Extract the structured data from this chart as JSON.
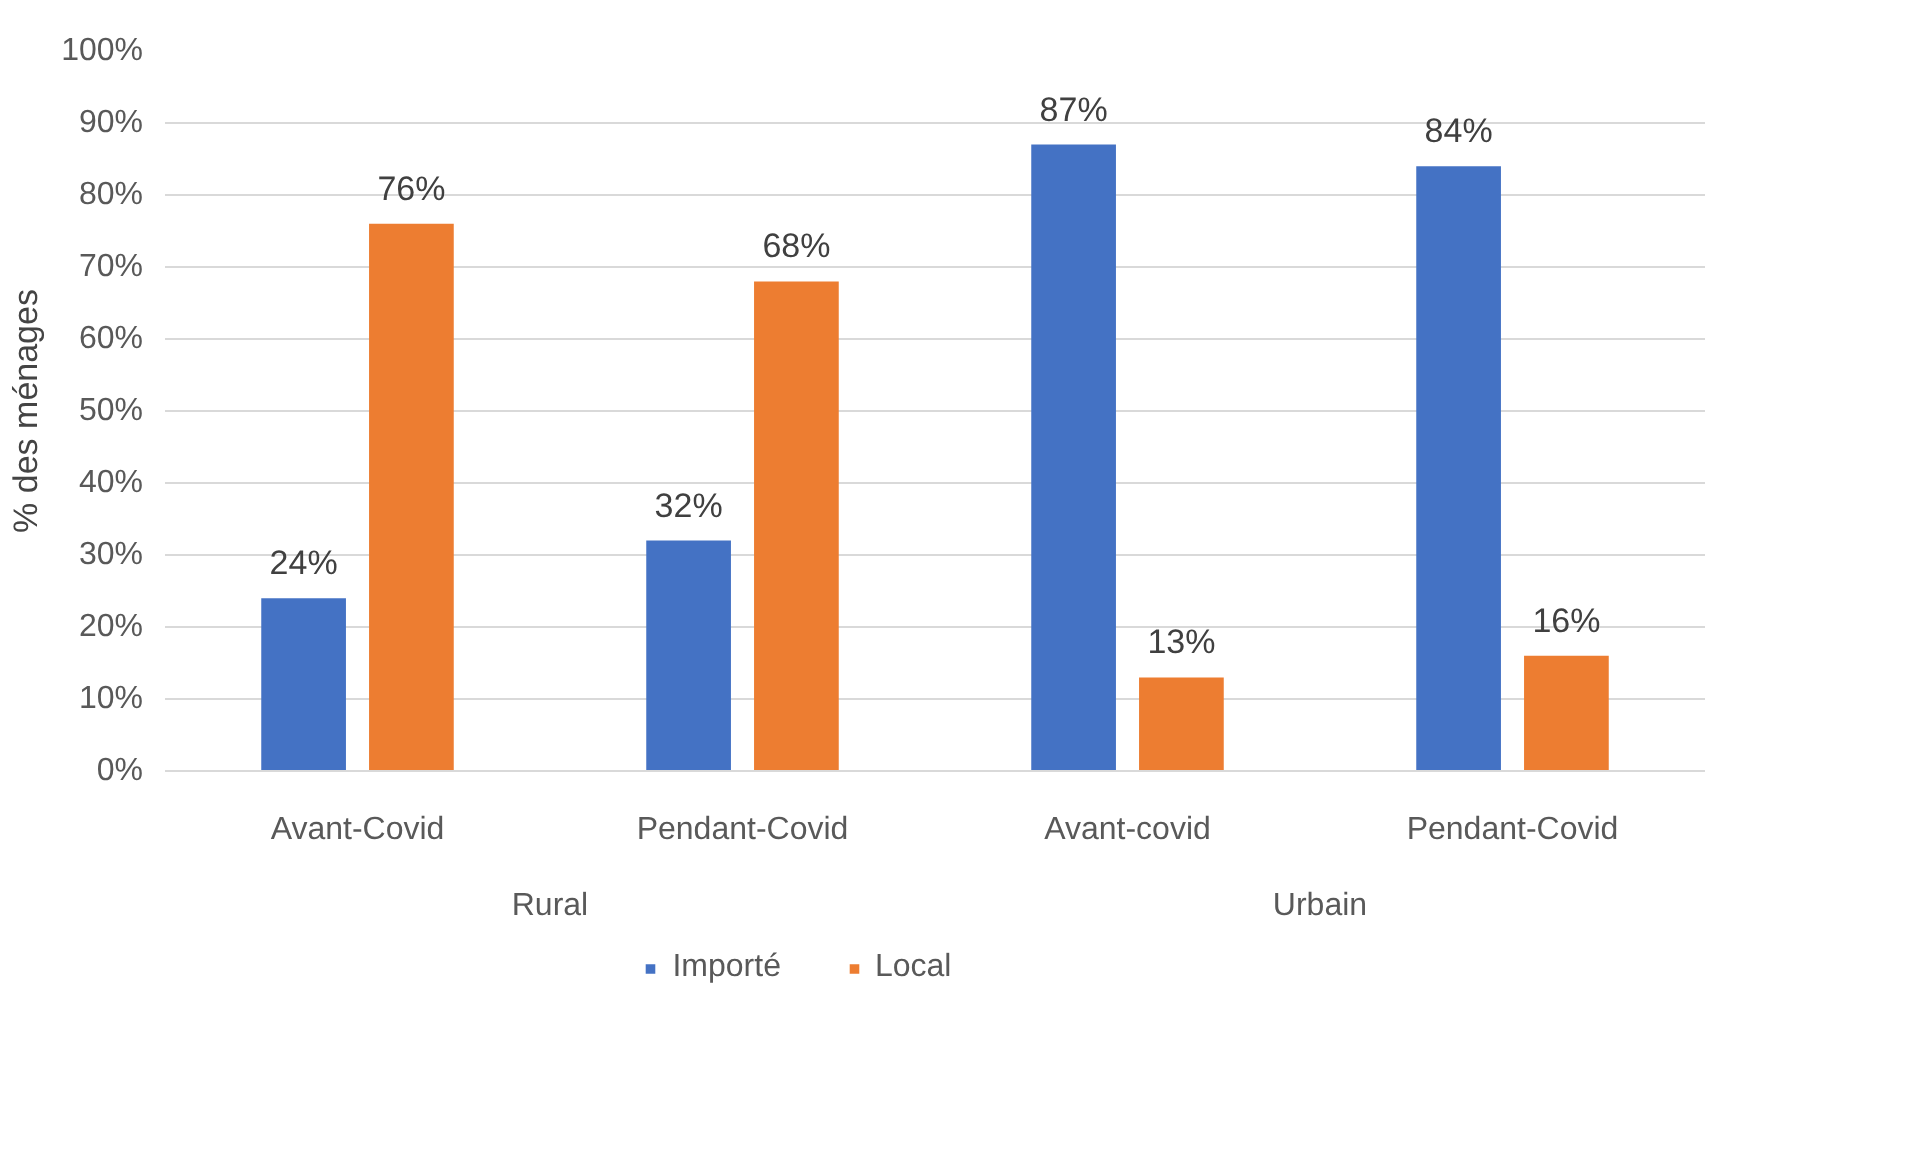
{
  "chart_data": {
    "type": "bar",
    "ylabel": "% des ménages",
    "categories": [
      "Avant-Covid",
      "Pendant-Covid",
      "Avant-covid",
      "Pendant-Covid"
    ],
    "annotations": [
      "Rural",
      "Urbain"
    ],
    "series": [
      {
        "name": "Importé",
        "color": "#4472c4",
        "values": [
          24,
          32,
          87,
          84
        ],
        "value_labels": [
          "24%",
          "32%",
          "87%",
          "84%"
        ]
      },
      {
        "name": "Local",
        "color": "#ed7d31",
        "values": [
          76,
          68,
          13,
          16
        ],
        "value_labels": [
          "76%",
          "68%",
          "13%",
          "16%"
        ]
      }
    ],
    "ylim": [
      0,
      100
    ],
    "yticks": [
      {
        "value": 0,
        "label": "0%"
      },
      {
        "value": 10,
        "label": "10%"
      },
      {
        "value": 20,
        "label": "20%"
      },
      {
        "value": 30,
        "label": "30%"
      },
      {
        "value": 40,
        "label": "40%"
      },
      {
        "value": 50,
        "label": "50%"
      },
      {
        "value": 60,
        "label": "60%"
      },
      {
        "value": 70,
        "label": "70%"
      },
      {
        "value": 80,
        "label": "80%"
      },
      {
        "value": 90,
        "label": "90%"
      },
      {
        "value": 100,
        "label": "100%"
      }
    ],
    "grid": "y",
    "legend": "bottom"
  }
}
